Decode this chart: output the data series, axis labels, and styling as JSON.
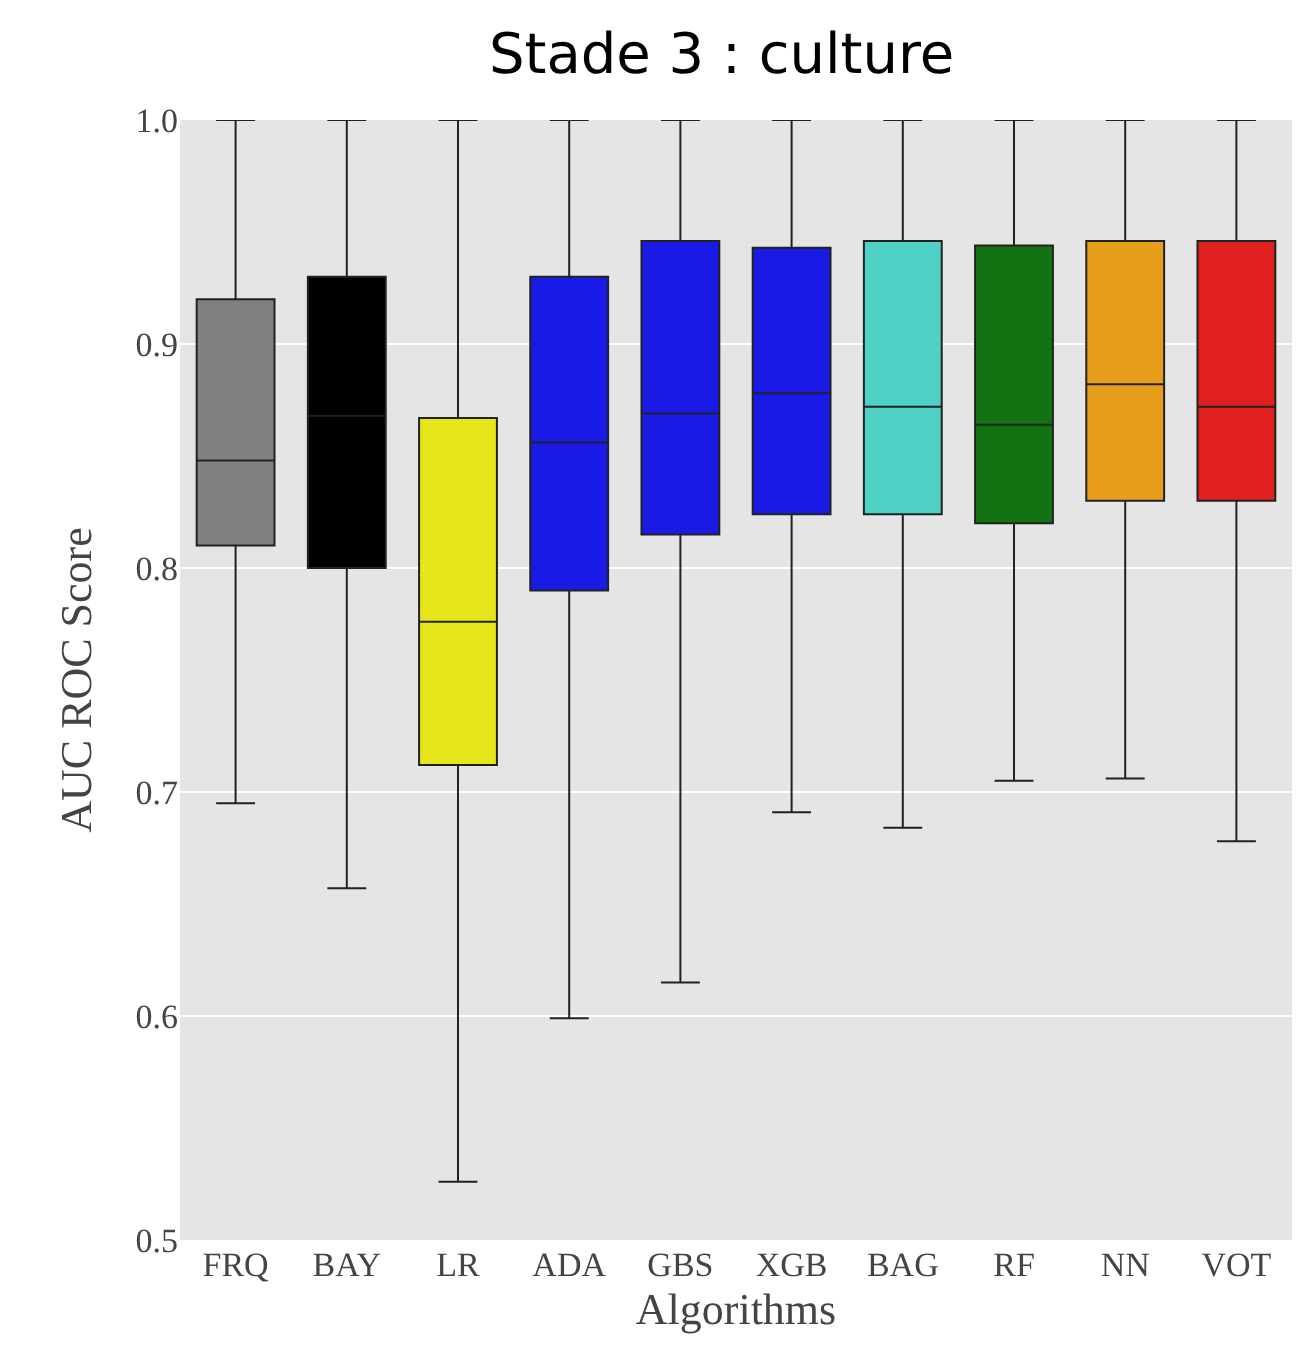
{
  "chart_data": {
    "type": "box",
    "title": "Stade 3 : culture",
    "xlabel": "Algorithms",
    "ylabel": "AUC ROC Score",
    "categories": [
      "FRQ",
      "BAY",
      "LR",
      "ADA",
      "GBS",
      "XGB",
      "BAG",
      "RF",
      "NN",
      "VOT"
    ],
    "colors": [
      "#808080",
      "#000000",
      "#e6e61a",
      "#1a1ae6",
      "#1a1ae6",
      "#1a1ae6",
      "#4fd1c5",
      "#137313",
      "#e69e1a",
      "#e01f1f"
    ],
    "boxes": [
      {
        "low": 0.695,
        "q1": 0.81,
        "median": 0.848,
        "q3": 0.92,
        "high": 1.0
      },
      {
        "low": 0.657,
        "q1": 0.8,
        "median": 0.868,
        "q3": 0.93,
        "high": 1.0
      },
      {
        "low": 0.526,
        "q1": 0.712,
        "median": 0.776,
        "q3": 0.867,
        "high": 1.0
      },
      {
        "low": 0.599,
        "q1": 0.79,
        "median": 0.856,
        "q3": 0.93,
        "high": 1.0
      },
      {
        "low": 0.615,
        "q1": 0.815,
        "median": 0.869,
        "q3": 0.946,
        "high": 1.0
      },
      {
        "low": 0.691,
        "q1": 0.824,
        "median": 0.878,
        "q3": 0.943,
        "high": 1.0
      },
      {
        "low": 0.684,
        "q1": 0.824,
        "median": 0.872,
        "q3": 0.946,
        "high": 1.0
      },
      {
        "low": 0.705,
        "q1": 0.82,
        "median": 0.864,
        "q3": 0.944,
        "high": 1.0
      },
      {
        "low": 0.706,
        "q1": 0.83,
        "median": 0.882,
        "q3": 0.946,
        "high": 1.0
      },
      {
        "low": 0.678,
        "q1": 0.83,
        "median": 0.872,
        "q3": 0.946,
        "high": 1.0
      }
    ],
    "ylim": [
      0.5,
      1.0
    ],
    "yticks": [
      {
        "value": 0.5,
        "label": "0.5"
      },
      {
        "value": 0.6,
        "label": "0.6"
      },
      {
        "value": 0.7,
        "label": "0.7"
      },
      {
        "value": 0.8,
        "label": "0.8"
      },
      {
        "value": 0.9,
        "label": "0.9"
      },
      {
        "value": 1.0,
        "label": "1.0"
      }
    ],
    "grid": "y"
  }
}
